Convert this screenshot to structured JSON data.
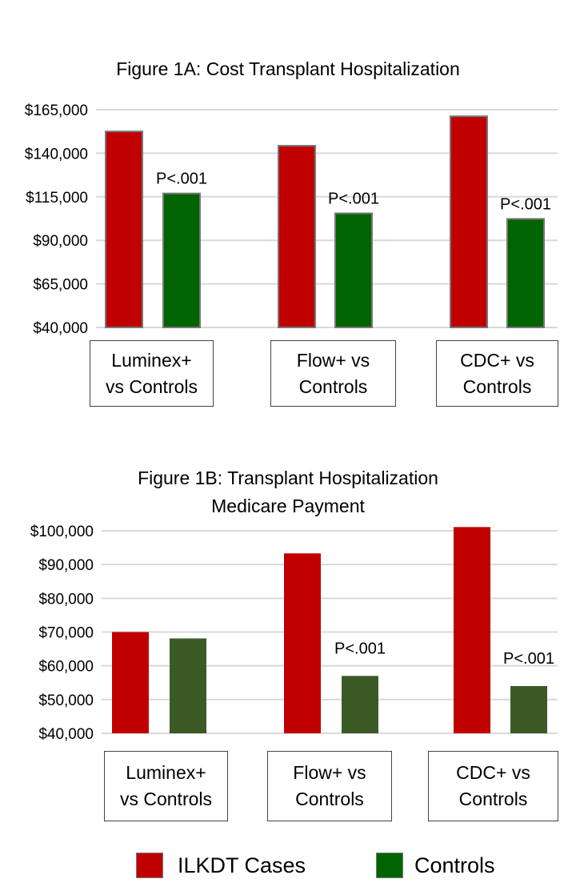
{
  "chart_data": [
    {
      "type": "bar",
      "title": "Figure 1A: Cost Transplant Hospitalization",
      "categories": [
        "Luminex+\nvs Controls",
        "Flow+ vs\nControls",
        "CDC+ vs\nControls"
      ],
      "series": [
        {
          "name": "ILKDT Cases",
          "color": "#c00000",
          "values": [
            152500,
            144300,
            161200
          ]
        },
        {
          "name": "Controls",
          "color": "#006400",
          "values": [
            116900,
            105500,
            102300
          ]
        }
      ],
      "annotations": [
        "P<.001",
        "P<.001",
        "P<.001"
      ],
      "yticks": [
        "$40,000",
        "$65,000",
        "$90,000",
        "$115,000",
        "$140,000",
        "$165,000"
      ],
      "ylim": [
        40000,
        165000
      ],
      "grid": true
    },
    {
      "type": "bar",
      "title": "Figure 1B: Transplant Hospitalization\nMedicare Payment",
      "categories": [
        "Luminex+\nvs Controls",
        "Flow+ vs\nControls",
        "CDC+ vs\nControls"
      ],
      "series": [
        {
          "name": "ILKDT Cases",
          "color": "#c00000",
          "values": [
            70000,
            93300,
            101100
          ]
        },
        {
          "name": "Controls",
          "color": "#3b5a26",
          "values": [
            68100,
            57000,
            54000
          ]
        }
      ],
      "annotations": [
        "",
        "P<.001",
        "P<.001"
      ],
      "yticks": [
        "$40,000",
        "$50,000",
        "$60,000",
        "$70,000",
        "$80,000",
        "$90,000",
        "$100,000"
      ],
      "ylim": [
        40000,
        100000
      ],
      "grid": true
    }
  ],
  "legend": {
    "placement": "bottom",
    "items": [
      {
        "label": "ILKDT Cases",
        "color": "#c00000"
      },
      {
        "label": "Controls",
        "color": "#006400"
      }
    ]
  }
}
